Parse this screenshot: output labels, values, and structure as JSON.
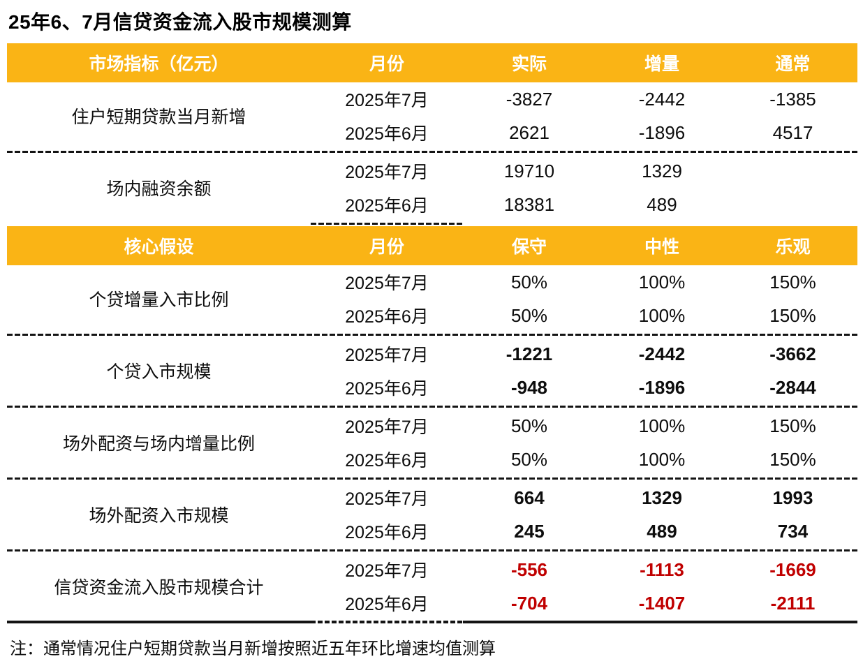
{
  "colors": {
    "header_bg": "#FAB415",
    "header_text": "#FFFFFF",
    "total_negative_red": "#C00000",
    "body_text": "#0D0D0D"
  },
  "chart_data": {
    "type": "table",
    "title": "25年6、7月信贷资金流入股市规模测算",
    "note": "注：通常情况住户短期贷款当月新增按照近五年环比增速均值测算",
    "sections": [
      {
        "header": [
          "市场指标（亿元）",
          "月份",
          "实际",
          "增量",
          "通常"
        ],
        "groups": [
          {
            "label": "住户短期贷款当月新增",
            "emphasis": "normal",
            "rows": [
              [
                "2025年7月",
                "-3827",
                "-2442",
                "-1385"
              ],
              [
                "2025年6月",
                "2621",
                "-1896",
                "4517"
              ]
            ]
          },
          {
            "label": "场内融资余额",
            "emphasis": "normal",
            "rows": [
              [
                "2025年7月",
                "19710",
                "1329",
                ""
              ],
              [
                "2025年6月",
                "18381",
                "489",
                ""
              ]
            ]
          }
        ]
      },
      {
        "header": [
          "核心假设",
          "月份",
          "保守",
          "中性",
          "乐观"
        ],
        "groups": [
          {
            "label": "个贷增量入市比例",
            "emphasis": "normal",
            "rows": [
              [
                "2025年7月",
                "50%",
                "100%",
                "150%"
              ],
              [
                "2025年6月",
                "50%",
                "100%",
                "150%"
              ]
            ]
          },
          {
            "label": "个贷入市规模",
            "emphasis": "bold",
            "rows": [
              [
                "2025年7月",
                "-1221",
                "-2442",
                "-3662"
              ],
              [
                "2025年6月",
                "-948",
                "-1896",
                "-2844"
              ]
            ]
          },
          {
            "label": "场外配资与场内增量比例",
            "emphasis": "normal",
            "rows": [
              [
                "2025年7月",
                "50%",
                "100%",
                "150%"
              ],
              [
                "2025年6月",
                "50%",
                "100%",
                "150%"
              ]
            ]
          },
          {
            "label": "场外配资入市规模",
            "emphasis": "bold",
            "rows": [
              [
                "2025年7月",
                "664",
                "1329",
                "1993"
              ],
              [
                "2025年6月",
                "245",
                "489",
                "734"
              ]
            ]
          },
          {
            "label": "信贷资金流入股市规模合计",
            "emphasis": "red-bold",
            "rows": [
              [
                "2025年7月",
                "-556",
                "-1113",
                "-1669"
              ],
              [
                "2025年6月",
                "-704",
                "-1407",
                "-2111"
              ]
            ]
          }
        ]
      }
    ]
  }
}
